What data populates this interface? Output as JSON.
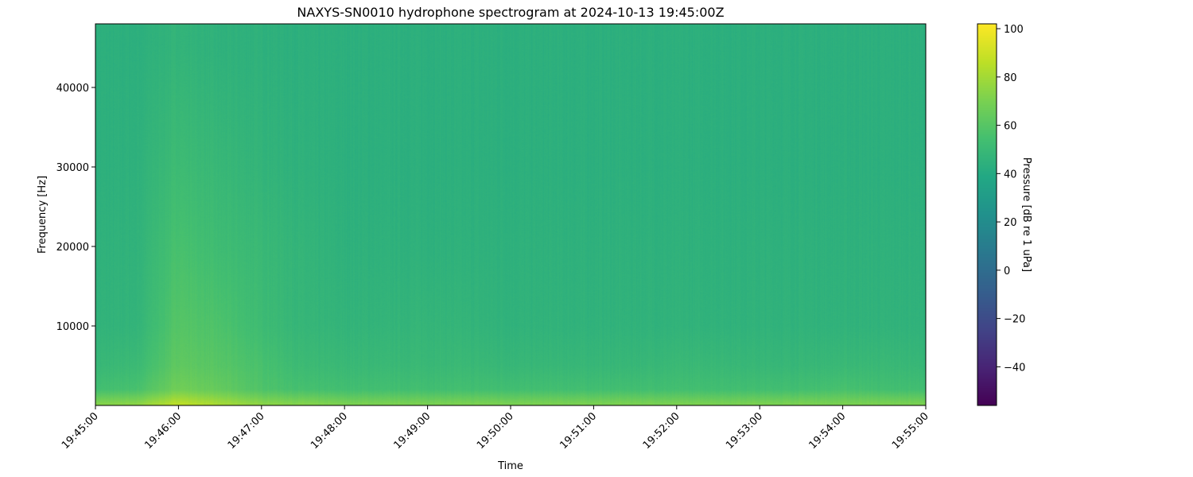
{
  "chart_data": {
    "type": "heatmap",
    "title": "NAXYS-SN0010 hydrophone spectrogram at 2024-10-13 19:45:00Z",
    "xlabel": "Time",
    "ylabel": "Frequency [Hz]",
    "colorbar_label": "Pressure [dB re 1 uPa]",
    "colormap": "viridis",
    "xlim": [
      "19:45:00",
      "19:55:00"
    ],
    "ylim": [
      0,
      48000
    ],
    "clim": [
      -56,
      102
    ],
    "x_ticks": [
      "19:45:00",
      "19:46:00",
      "19:47:00",
      "19:48:00",
      "19:49:00",
      "19:50:00",
      "19:51:00",
      "19:52:00",
      "19:53:00",
      "19:54:00",
      "19:55:00"
    ],
    "y_ticks": [
      10000,
      20000,
      30000,
      40000
    ],
    "colorbar_ticks": [
      -40,
      -20,
      0,
      20,
      40,
      60,
      80,
      100
    ],
    "grid": false,
    "approx_levels_db": {
      "times": [
        "19:45:00",
        "19:45:30",
        "19:46:00",
        "19:46:30",
        "19:47:00",
        "19:47:30",
        "19:48:00",
        "19:48:30",
        "19:49:00",
        "19:49:30",
        "19:50:00",
        "19:50:30",
        "19:51:00",
        "19:51:30",
        "19:52:00",
        "19:52:30",
        "19:53:00",
        "19:53:30",
        "19:54:00",
        "19:54:30",
        "19:55:00"
      ],
      "frequencies_hz": [
        250,
        2000,
        5000,
        10000,
        20000,
        30000,
        45000
      ],
      "values": [
        [
          72,
          74,
          86,
          80,
          74,
          72,
          70,
          70,
          70,
          70,
          70,
          70,
          70,
          70,
          70,
          70,
          70,
          70,
          70,
          70,
          70
        ],
        [
          54,
          56,
          68,
          64,
          58,
          55,
          54,
          54,
          54,
          54,
          54,
          54,
          54,
          54,
          54,
          54,
          54,
          54,
          56,
          54,
          54
        ],
        [
          49,
          51,
          63,
          60,
          56,
          51,
          50,
          50,
          50,
          50,
          49,
          49,
          49,
          49,
          50,
          50,
          49,
          49,
          50,
          50,
          49
        ],
        [
          46,
          47,
          60,
          57,
          52,
          48,
          47,
          47,
          48,
          47,
          46,
          46,
          46,
          46,
          46,
          46,
          46,
          46,
          46,
          46,
          46
        ],
        [
          45,
          46,
          56,
          52,
          50,
          47,
          45,
          45,
          45,
          45,
          45,
          45,
          45,
          45,
          45,
          45,
          45,
          45,
          45,
          45,
          45
        ],
        [
          44,
          45,
          52,
          49,
          47,
          45,
          44,
          44,
          44,
          44,
          44,
          44,
          44,
          44,
          44,
          44,
          44,
          44,
          44,
          44,
          44
        ],
        [
          44,
          44,
          47,
          45,
          45,
          44,
          44,
          44,
          44,
          44,
          44,
          44,
          44,
          44,
          44,
          44,
          44,
          44,
          44,
          44,
          44
        ]
      ]
    }
  }
}
